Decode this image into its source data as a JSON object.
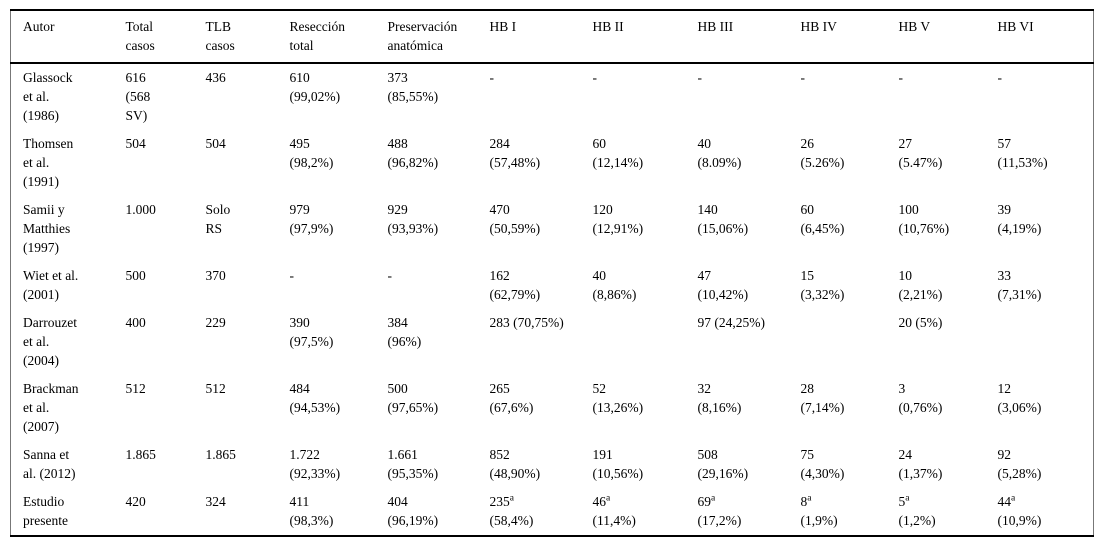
{
  "colors": {
    "background": "#ffffff",
    "text": "#000000",
    "rule": "#000000"
  },
  "table": {
    "columns": [
      "Autor",
      "Total\ncasos",
      "TLB\ncasos",
      "Resección\ntotal",
      "Preservación\nanatómica",
      "HB I",
      "HB II",
      "HB III",
      "HB IV",
      "HB V",
      "HB VI"
    ],
    "rows": [
      [
        "Glassock\net al.\n(1986)",
        "616\n(568\nSV)",
        "436",
        "610\n(99,02%)",
        "373\n(85,55%)",
        "-",
        "-",
        "-",
        "-",
        "-",
        "-"
      ],
      [
        "Thomsen\net al.\n(1991)",
        "504",
        "504",
        "495\n(98,2%)",
        "488\n(96,82%)",
        "284\n(57,48%)",
        "60\n(12,14%)",
        "40\n(8.09%)",
        "26\n(5.26%)",
        "27\n(5.47%)",
        "57\n(11,53%)"
      ],
      [
        "Samii y\nMatthies\n(1997)",
        "1.000",
        "Solo\nRS",
        "979\n(97,9%)",
        "929\n(93,93%)",
        "470\n(50,59%)",
        "120\n(12,91%)",
        "140\n(15,06%)",
        "60\n(6,45%)",
        "100\n(10,76%)",
        "39\n(4,19%)"
      ],
      [
        "Wiet et al.\n(2001)",
        "500",
        "370",
        "-",
        "-",
        "162\n(62,79%)",
        "40\n(8,86%)",
        "47\n(10,42%)",
        "15\n(3,32%)",
        "10\n(2,21%)",
        "33\n(7,31%)"
      ],
      [
        "Darrouzet\net al.\n(2004)",
        "400",
        "229",
        "390\n(97,5%)",
        "384\n(96%)",
        "283 (70,75%)",
        "",
        "97 (24,25%)",
        "",
        "20 (5%)",
        ""
      ],
      [
        "Brackman\net al.\n(2007)",
        "512",
        "512",
        "484\n(94,53%)",
        "500\n(97,65%)",
        "265\n(67,6%)",
        "52\n(13,26%)",
        "32\n(8,16%)",
        "28\n(7,14%)",
        "3\n(0,76%)",
        "12\n(3,06%)"
      ],
      [
        "Sanna et\nal. (2012)",
        "1.865",
        "1.865",
        "1.722\n(92,33%)",
        "1.661\n(95,35%)",
        "852\n(48,90%)",
        "191\n(10,56%)",
        "508\n(29,16%)",
        "75\n(4,30%)",
        "24\n(1,37%)",
        "92\n(5,28%)"
      ],
      [
        "Estudio\npresente",
        "420",
        "324",
        "411\n(98,3%)",
        "404\n(96,19%)",
        "235^a\n(58,4%)",
        "46^a\n(11,4%)",
        "69^a\n(17,2%)",
        "8^a\n(1,9%)",
        "5^a\n(1,2%)",
        "44^a\n(10,9%)"
      ]
    ]
  }
}
